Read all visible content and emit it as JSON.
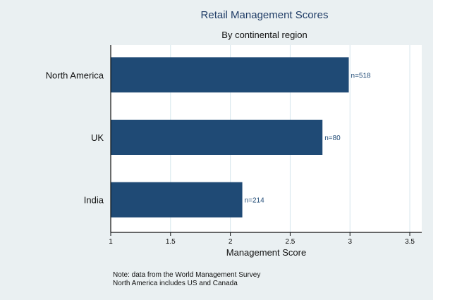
{
  "chart_data": {
    "type": "bar",
    "orientation": "horizontal",
    "title": "Retail Management Scores",
    "subtitle": "By continental region",
    "xlabel": "Management Score",
    "ylabel": "",
    "categories": [
      "North America",
      "UK",
      "India"
    ],
    "values": [
      2.99,
      2.77,
      2.1
    ],
    "data_labels": [
      "n=518",
      "n=80",
      "n=214"
    ],
    "xlim": [
      1,
      3.6
    ],
    "xticks": [
      "1",
      "1.5",
      "2",
      "2.5",
      "3",
      "3.5"
    ],
    "xtick_values": [
      1,
      1.5,
      2,
      2.5,
      3,
      3.5
    ],
    "grid": true,
    "legend": "none",
    "notes": [
      "Note: data from the World Management Survey",
      "North America includes US and Canada"
    ],
    "colors": {
      "bar": "#1f4a75",
      "label": "#1f4a75",
      "grid": "#d6e6ec",
      "background": "#eaf0f2",
      "plot_background": "#ffffff"
    }
  }
}
